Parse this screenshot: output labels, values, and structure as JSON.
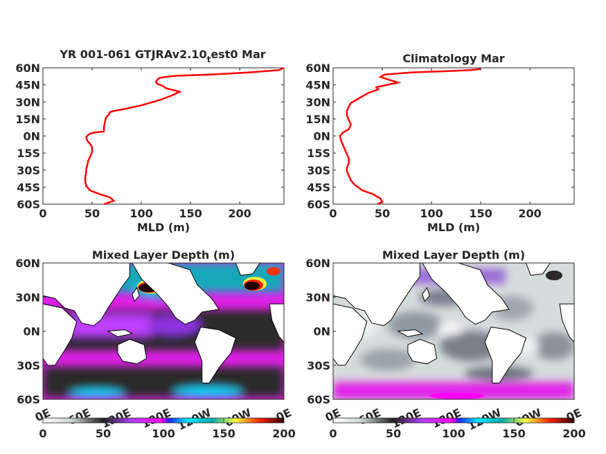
{
  "chart_data": [
    {
      "type": "line",
      "title": "YR 001-061 GTJRAv2.10",
      "title_subscript": "t",
      "title_suffix": "est0 Mar",
      "xlabel": "MLD (m)",
      "ylabel": "",
      "xlim": [
        0,
        245
      ],
      "ylim": [
        -60,
        60
      ],
      "x_ticks": [
        "0",
        "50",
        "100",
        "150",
        "200"
      ],
      "y_ticks": [
        "60N",
        "45N",
        "30N",
        "15N",
        "0N",
        "15S",
        "30S",
        "45S",
        "60S"
      ],
      "series": [
        {
          "color": "#ff0000",
          "points": [
            [
              62,
              -62
            ],
            [
              72,
              -57
            ],
            [
              68,
              -54
            ],
            [
              57,
              -51
            ],
            [
              48,
              -48
            ],
            [
              44,
              -44
            ],
            [
              43,
              -40
            ],
            [
              43,
              -36
            ],
            [
              44,
              -32
            ],
            [
              44,
              -29
            ],
            [
              45,
              -26
            ],
            [
              46,
              -22
            ],
            [
              48,
              -18
            ],
            [
              50,
              -14
            ],
            [
              50,
              -10
            ],
            [
              48,
              -7
            ],
            [
              45,
              -4
            ],
            [
              44,
              -1
            ],
            [
              46,
              1
            ],
            [
              48,
              2
            ],
            [
              52,
              3
            ],
            [
              62,
              4
            ],
            [
              62,
              8
            ],
            [
              63,
              12
            ],
            [
              64,
              16
            ],
            [
              67,
              19
            ],
            [
              68,
              21
            ],
            [
              72,
              22
            ],
            [
              84,
              24
            ],
            [
              100,
              27
            ],
            [
              108,
              29
            ],
            [
              120,
              32
            ],
            [
              132,
              36
            ],
            [
              139,
              39
            ],
            [
              125,
              42
            ],
            [
              122,
              44
            ],
            [
              116,
              46
            ],
            [
              115,
              48
            ],
            [
              118,
              51
            ],
            [
              125,
              52
            ],
            [
              135,
              53
            ],
            [
              170,
              54
            ],
            [
              210,
              56
            ],
            [
              240,
              58
            ],
            [
              245,
              60
            ]
          ]
        }
      ]
    },
    {
      "type": "line",
      "title": "Climatology Mar",
      "xlabel": "MLD (m)",
      "ylabel": "",
      "xlim": [
        0,
        245
      ],
      "ylim": [
        -60,
        60
      ],
      "x_ticks": [
        "0",
        "50",
        "100",
        "150",
        "200"
      ],
      "y_ticks": [
        "60N",
        "45N",
        "30N",
        "15N",
        "0N",
        "15S",
        "30S",
        "45S",
        "60S"
      ],
      "series": [
        {
          "color": "#ff0000",
          "points": [
            [
              45,
              -62
            ],
            [
              50,
              -58
            ],
            [
              48,
              -55
            ],
            [
              40,
              -51
            ],
            [
              30,
              -48
            ],
            [
              22,
              -43
            ],
            [
              18,
              -39
            ],
            [
              16,
              -35
            ],
            [
              14,
              -31
            ],
            [
              14,
              -28
            ],
            [
              16,
              -24
            ],
            [
              16,
              -20
            ],
            [
              14,
              -16
            ],
            [
              12,
              -12
            ],
            [
              10,
              -8
            ],
            [
              8,
              -4
            ],
            [
              7,
              0
            ],
            [
              10,
              3
            ],
            [
              16,
              6
            ],
            [
              18,
              10
            ],
            [
              16,
              14
            ],
            [
              14,
              18
            ],
            [
              14,
              22
            ],
            [
              16,
              26
            ],
            [
              18,
              29
            ],
            [
              24,
              32
            ],
            [
              30,
              35
            ],
            [
              36,
              38
            ],
            [
              46,
              41
            ],
            [
              44,
              43
            ],
            [
              55,
              45
            ],
            [
              66,
              47
            ],
            [
              55,
              50
            ],
            [
              48,
              52
            ],
            [
              52,
              54
            ],
            [
              80,
              56
            ],
            [
              115,
              57
            ],
            [
              140,
              58
            ],
            [
              150,
              59
            ]
          ]
        }
      ]
    },
    {
      "type": "heatmap",
      "title": "Mixed Layer Depth (m)",
      "x_ticks": [
        "0E",
        "60E",
        "120E",
        "180E",
        "120W",
        "60W",
        "0E"
      ],
      "y_ticks": [
        "60N",
        "30N",
        "0N",
        "30S",
        "60S"
      ],
      "colorbar_ticks": [
        "0",
        "50",
        "100",
        "150",
        "200"
      ],
      "colorbar_range": [
        0,
        200
      ]
    },
    {
      "type": "heatmap",
      "title": "Mixed Layer Depth (m)",
      "x_ticks": [
        "0E",
        "60E",
        "120E",
        "180E",
        "120W",
        "60W",
        "0E"
      ],
      "y_ticks": [
        "60N",
        "30N",
        "0N",
        "30S",
        "60S"
      ],
      "colorbar_ticks": [
        "0",
        "50",
        "100",
        "150",
        "200"
      ],
      "colorbar_range": [
        0,
        200
      ]
    }
  ],
  "colormap": [
    [
      0,
      "#ffffff"
    ],
    [
      0.12,
      "#c9d2d2"
    ],
    [
      0.25,
      "#202020"
    ],
    [
      0.37,
      "#b040ff"
    ],
    [
      0.5,
      "#ff00ff"
    ],
    [
      0.6,
      "#00e8ff"
    ],
    [
      0.7,
      "#00aaaa"
    ],
    [
      0.8,
      "#ffff40"
    ],
    [
      0.9,
      "#ff2000"
    ],
    [
      1.0,
      "#300000"
    ]
  ]
}
